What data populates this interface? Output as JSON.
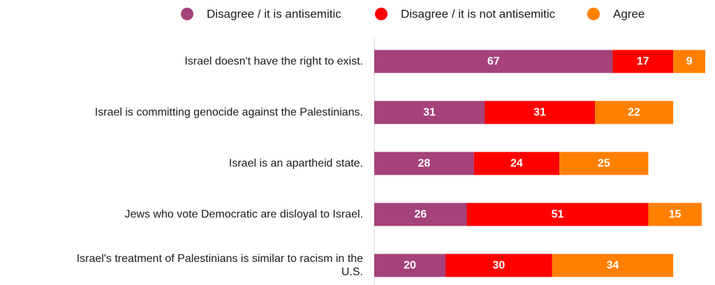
{
  "chart_data": {
    "type": "bar",
    "orientation": "horizontal",
    "stacked": true,
    "legend_position": "top",
    "grid": false,
    "categories": [
      [
        "Israel doesn't have the right to exist."
      ],
      [
        "Israel is committing genocide against the Palestinians."
      ],
      [
        "Israel is an apartheid state."
      ],
      [
        "Jews who vote Democratic are disloyal to Israel."
      ],
      [
        "Israel's treatment of Palestinians is similar to racism in the",
        "U.S."
      ]
    ],
    "series": [
      {
        "name": "Disagree / it is antisemitic",
        "color": "#a5427a",
        "values": [
          67,
          31,
          28,
          26,
          20
        ]
      },
      {
        "name": "Disagree / it is not antisemitic",
        "color": "#ff0000",
        "values": [
          17,
          31,
          24,
          51,
          30
        ]
      },
      {
        "name": "Agree",
        "color": "#ff8000",
        "values": [
          9,
          22,
          25,
          15,
          34
        ]
      }
    ]
  }
}
